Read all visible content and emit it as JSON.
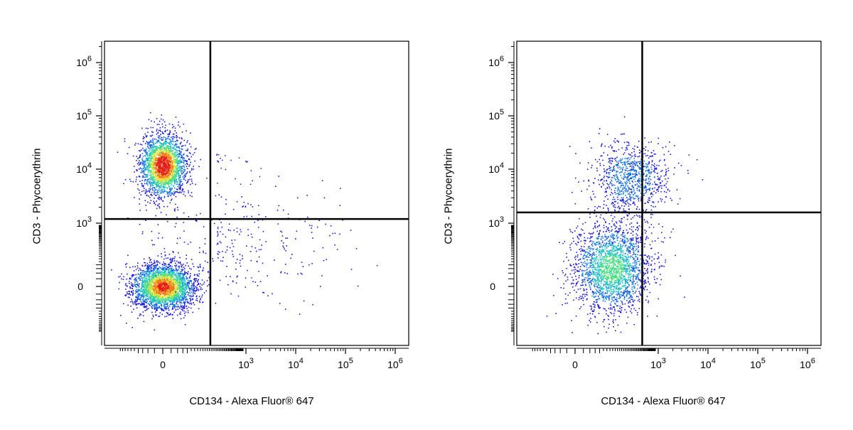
{
  "colors": {
    "density_scale": [
      "#1a1ad6",
      "#1e7fe0",
      "#22c7c0",
      "#4ee07a",
      "#e8e13a",
      "#f07a1a",
      "#e41a1a"
    ],
    "axes": "#000000",
    "gates": "#000000"
  },
  "chart_data": [
    {
      "type": "scatter",
      "subtype": "flow-cytometry density dot plot",
      "xlabel": "CD134 - Alexa Fluor® 647",
      "ylabel": "CD3 - Phycoerythrin",
      "x_scale": "biexponential",
      "y_scale": "biexponential",
      "x_ticks": [
        "0",
        "10^3",
        "10^4",
        "10^5",
        "10^6"
      ],
      "y_ticks": [
        "10^6",
        "10^5",
        "10^4",
        "10^3",
        "0"
      ],
      "quadrant_gate": {
        "x": 250,
        "y": 1200
      },
      "populations": [
        {
          "x_center": 0,
          "y_center": 12000,
          "relative_size": 0.42
        },
        {
          "x_center": 0,
          "y_center": 0,
          "relative_size": 0.52
        },
        {
          "x_center": 900,
          "y_center": 400,
          "relative_size": 0.06
        }
      ]
    },
    {
      "type": "scatter",
      "subtype": "flow-cytometry density dot plot",
      "xlabel": "CD134 - Alexa Fluor® 647",
      "ylabel": "CD3 - Phycoerythrin",
      "x_scale": "biexponential",
      "y_scale": "biexponential",
      "x_ticks": [
        "0",
        "10^3",
        "10^4",
        "10^5",
        "10^6"
      ],
      "y_ticks": [
        "10^6",
        "10^5",
        "10^4",
        "10^3",
        "0"
      ],
      "quadrant_gate": {
        "x": 550,
        "y": 1600
      },
      "populations": [
        {
          "x_center": 350,
          "y_center": 7000,
          "relative_size": 0.3
        },
        {
          "x_center": 150,
          "y_center": 80,
          "relative_size": 0.7
        }
      ]
    }
  ]
}
